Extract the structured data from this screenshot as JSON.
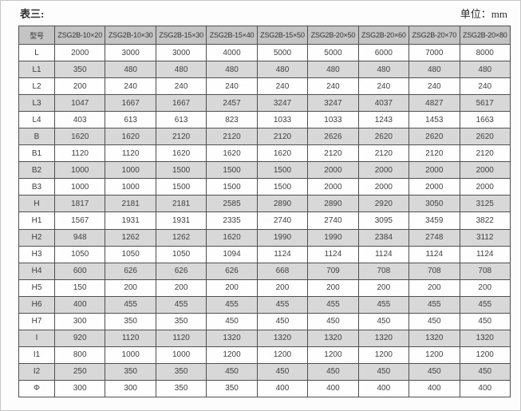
{
  "page": {
    "table_label": "表三:",
    "unit_label": "单位：mm"
  },
  "colors": {
    "header_bg": "#c4c4c4",
    "stripe_bg": "#d8d8d8",
    "row_bg": "#fefefe",
    "border": "#4f4f4f",
    "text": "#404040"
  },
  "table": {
    "header": [
      "型号",
      "ZSG2B-10×20",
      "ZSG2B-10×30",
      "ZSG2B-15×30",
      "ZSG2B-15×40",
      "ZSG2B-15×50",
      "ZSG2B-20×50",
      "ZSG2B-20×60",
      "ZSG2B-20×70",
      "ZSG2B-20×80"
    ],
    "rows": [
      {
        "label": "L",
        "values": [
          "2000",
          "3000",
          "3000",
          "4000",
          "5000",
          "5000",
          "6000",
          "7000",
          "8000"
        ]
      },
      {
        "label": "L1",
        "values": [
          "350",
          "480",
          "480",
          "480",
          "480",
          "480",
          "480",
          "480",
          "480"
        ]
      },
      {
        "label": "L2",
        "values": [
          "200",
          "240",
          "240",
          "240",
          "240",
          "240",
          "240",
          "240",
          "240"
        ]
      },
      {
        "label": "L3",
        "values": [
          "1047",
          "1667",
          "1667",
          "2457",
          "3247",
          "3247",
          "4037",
          "4827",
          "5617"
        ]
      },
      {
        "label": "L4",
        "values": [
          "403",
          "613",
          "613",
          "823",
          "1033",
          "1033",
          "1243",
          "1453",
          "1663"
        ]
      },
      {
        "label": "B",
        "values": [
          "1620",
          "1620",
          "2120",
          "2120",
          "2120",
          "2626",
          "2620",
          "2620",
          "2620"
        ]
      },
      {
        "label": "B1",
        "values": [
          "1120",
          "1120",
          "1620",
          "1620",
          "1620",
          "2120",
          "2120",
          "2120",
          "2120"
        ]
      },
      {
        "label": "B2",
        "values": [
          "1000",
          "1000",
          "1500",
          "1500",
          "1500",
          "2000",
          "2000",
          "2000",
          "2000"
        ]
      },
      {
        "label": "B3",
        "values": [
          "1000",
          "1000",
          "1500",
          "1500",
          "1500",
          "2000",
          "2000",
          "2000",
          "2000"
        ]
      },
      {
        "label": "H",
        "values": [
          "1817",
          "2181",
          "2181",
          "2585",
          "2890",
          "2890",
          "2920",
          "3050",
          "3125"
        ]
      },
      {
        "label": "H1",
        "values": [
          "1567",
          "1931",
          "1931",
          "2335",
          "2740",
          "2740",
          "3095",
          "3459",
          "3822"
        ]
      },
      {
        "label": "H2",
        "values": [
          "948",
          "1262",
          "1262",
          "1620",
          "1990",
          "1990",
          "2384",
          "2748",
          "3112"
        ]
      },
      {
        "label": "H3",
        "values": [
          "1050",
          "1050",
          "1050",
          "1094",
          "1124",
          "1124",
          "1124",
          "1124",
          "1124"
        ]
      },
      {
        "label": "H4",
        "values": [
          "600",
          "626",
          "626",
          "626",
          "668",
          "709",
          "708",
          "708",
          "708"
        ]
      },
      {
        "label": "H5",
        "values": [
          "150",
          "200",
          "200",
          "200",
          "200",
          "200",
          "200",
          "200",
          "200"
        ]
      },
      {
        "label": "H6",
        "values": [
          "400",
          "455",
          "455",
          "455",
          "455",
          "455",
          "455",
          "455",
          "455"
        ]
      },
      {
        "label": "H7",
        "values": [
          "300",
          "350",
          "350",
          "450",
          "450",
          "450",
          "450",
          "450",
          "450"
        ]
      },
      {
        "label": "I",
        "values": [
          "920",
          "1120",
          "1120",
          "1320",
          "1320",
          "1320",
          "1320",
          "1320",
          "1320"
        ]
      },
      {
        "label": "I1",
        "values": [
          "800",
          "1000",
          "1000",
          "1200",
          "1200",
          "1200",
          "1200",
          "1200",
          "1200"
        ]
      },
      {
        "label": "I2",
        "values": [
          "250",
          "350",
          "350",
          "450",
          "450",
          "450",
          "450",
          "450",
          "450"
        ]
      },
      {
        "label": "Φ",
        "values": [
          "300",
          "300",
          "350",
          "350",
          "400",
          "400",
          "400",
          "400",
          "400"
        ]
      }
    ]
  }
}
